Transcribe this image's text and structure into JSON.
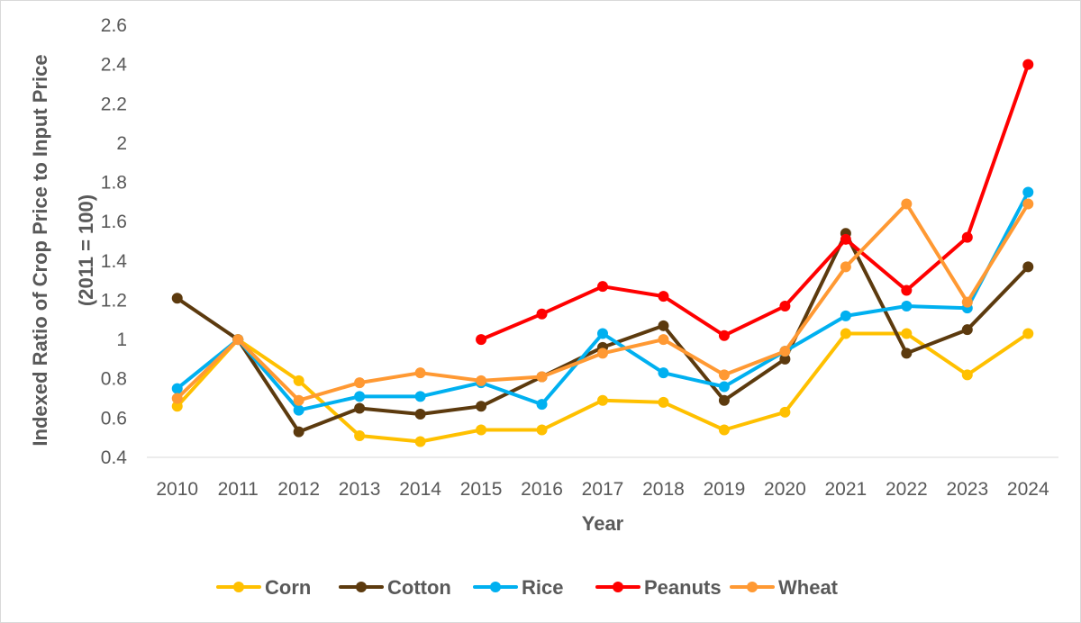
{
  "chart_data": {
    "type": "line",
    "title": "",
    "xlabel": "Year",
    "ylabel_lines": [
      "Indexed Ratio of Crop Price to Input Price",
      "(2011 = 100)"
    ],
    "x": [
      "2010",
      "2011",
      "2012",
      "2013",
      "2014",
      "2015",
      "2016",
      "2017",
      "2018",
      "2019",
      "2020",
      "2021",
      "2022",
      "2023",
      "2024"
    ],
    "ylim": [
      0.4,
      2.6
    ],
    "yticks": [
      0.4,
      0.6,
      0.8,
      1,
      1.2,
      1.4,
      1.6,
      1.8,
      2,
      2.2,
      2.4,
      2.6
    ],
    "ytick_labels": [
      "0.4",
      "0.6",
      "0.8",
      "1",
      "1.2",
      "1.4",
      "1.6",
      "1.8",
      "2",
      "2.2",
      "2.4",
      "2.6"
    ],
    "grid": false,
    "legend_position": "bottom",
    "series": [
      {
        "name": "Corn",
        "color": "#FFC000",
        "values": [
          0.66,
          1.0,
          0.79,
          0.51,
          0.48,
          0.54,
          0.54,
          0.69,
          0.68,
          0.54,
          0.63,
          1.03,
          1.03,
          0.82,
          1.03
        ]
      },
      {
        "name": "Cotton",
        "color": "#5C3A0E",
        "values": [
          1.21,
          1.0,
          0.53,
          0.65,
          0.62,
          0.66,
          0.81,
          0.96,
          1.07,
          0.69,
          0.9,
          1.54,
          0.93,
          1.05,
          1.37
        ]
      },
      {
        "name": "Rice",
        "color": "#00B0F0",
        "values": [
          0.75,
          1.0,
          0.64,
          0.71,
          0.71,
          0.78,
          0.67,
          1.03,
          0.83,
          0.76,
          0.94,
          1.12,
          1.17,
          1.16,
          1.75
        ]
      },
      {
        "name": "Peanuts",
        "color": "#FF0000",
        "values": [
          null,
          null,
          null,
          null,
          null,
          1.0,
          1.13,
          1.27,
          1.22,
          1.02,
          1.17,
          1.51,
          1.25,
          1.52,
          2.4
        ]
      },
      {
        "name": "Wheat",
        "color": "#FF9933",
        "values": [
          0.7,
          1.0,
          0.69,
          0.78,
          0.83,
          0.79,
          0.81,
          0.93,
          1.0,
          0.82,
          0.94,
          1.37,
          1.69,
          1.19,
          1.69
        ]
      }
    ]
  }
}
